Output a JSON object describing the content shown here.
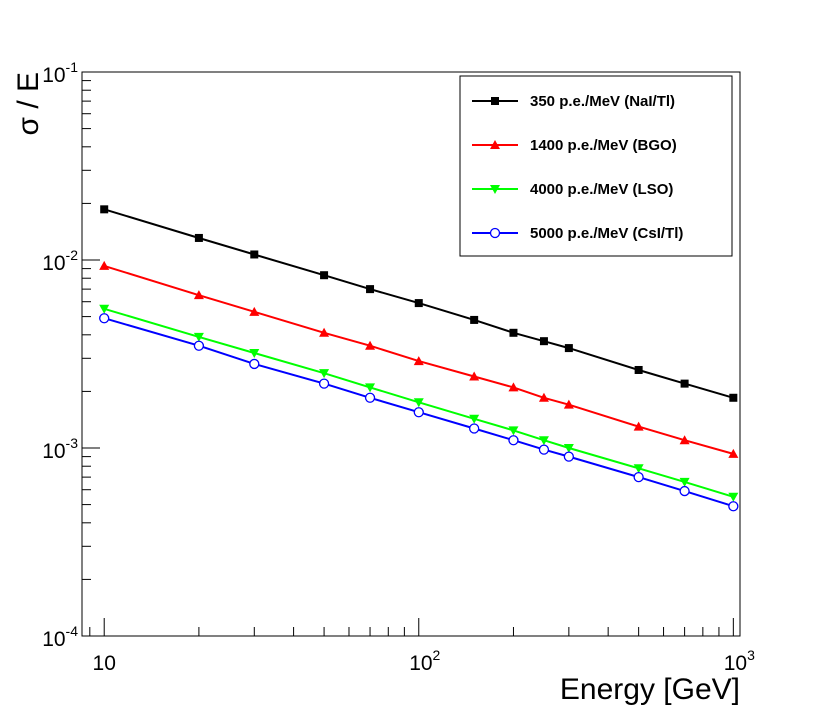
{
  "chart_data": {
    "type": "line",
    "xlabel": "Energy [GeV]",
    "ylabel": "σ / E",
    "x_scale": "log",
    "y_scale": "log",
    "xlim": [
      8.5,
      1050
    ],
    "ylim": [
      0.0001,
      0.1
    ],
    "x_ticks": [
      {
        "base": "10",
        "exp": ""
      },
      {
        "base": "10",
        "exp": "2"
      },
      {
        "base": "10",
        "exp": "3"
      }
    ],
    "y_ticks": [
      {
        "base": "10",
        "exp": "-4"
      },
      {
        "base": "10",
        "exp": "-3"
      },
      {
        "base": "10",
        "exp": "-2"
      },
      {
        "base": "10",
        "exp": "-1"
      }
    ],
    "grid": false,
    "legend_position": "top-right",
    "x": [
      10,
      20,
      30,
      50,
      70,
      100,
      150,
      200,
      250,
      300,
      500,
      700,
      1000
    ],
    "series": [
      {
        "name": "350 p.e./MeV (NaI/Tl)",
        "color": "#000000",
        "marker": "square",
        "values": [
          0.0186,
          0.0131,
          0.0107,
          0.0083,
          0.007,
          0.0059,
          0.0048,
          0.0041,
          0.0037,
          0.0034,
          0.0026,
          0.0022,
          0.00185
        ]
      },
      {
        "name": "1400 p.e./MeV (BGO)",
        "color": "#ff0000",
        "marker": "triangle-up",
        "values": [
          0.0093,
          0.0065,
          0.0053,
          0.0041,
          0.0035,
          0.0029,
          0.0024,
          0.0021,
          0.00185,
          0.0017,
          0.0013,
          0.0011,
          0.00093
        ]
      },
      {
        "name": "4000 p.e./MeV (LSO)",
        "color": "#00ff00",
        "marker": "triangle-down",
        "values": [
          0.0055,
          0.0039,
          0.0032,
          0.0025,
          0.0021,
          0.00175,
          0.00143,
          0.00124,
          0.0011,
          0.001,
          0.00078,
          0.00066,
          0.00055
        ]
      },
      {
        "name": "5000 p.e./MeV (CsI/Tl)",
        "color": "#0000ff",
        "marker": "circle-open",
        "values": [
          0.0049,
          0.0035,
          0.0028,
          0.0022,
          0.00185,
          0.00155,
          0.00127,
          0.0011,
          0.00098,
          0.0009,
          0.0007,
          0.00059,
          0.00049
        ]
      }
    ]
  }
}
